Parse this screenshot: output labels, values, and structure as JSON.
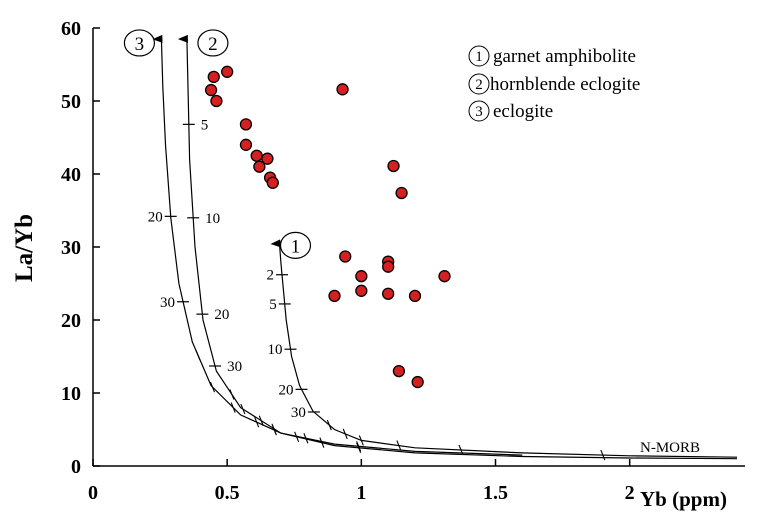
{
  "chart_data": {
    "type": "scatter",
    "xlabel": "Yb (ppm)",
    "ylabel": "La/Yb",
    "xlim": [
      0,
      2.4
    ],
    "ylim": [
      0,
      60
    ],
    "x_ticks": [
      "0",
      "0.5",
      "1",
      "1.5",
      "2"
    ],
    "y_ticks": [
      "0",
      "10",
      "20",
      "30",
      "40",
      "50",
      "60"
    ],
    "grid": false,
    "legend_position": "top-right",
    "legend": [
      {
        "number": "1",
        "label": "garnet amphibolite"
      },
      {
        "number": "2",
        "label": "hornblende eclogite"
      },
      {
        "number": "3",
        "label": "eclogite"
      }
    ],
    "annotation": "N-MORB",
    "points": {
      "color": "#d42020",
      "x": [
        0.44,
        0.45,
        0.46,
        0.5,
        0.57,
        0.57,
        0.61,
        0.62,
        0.65,
        0.66,
        0.67,
        0.93,
        1.12,
        1.15,
        0.94,
        1.1,
        1.1,
        1.0,
        1.31,
        0.9,
        1.0,
        1.1,
        1.2,
        1.14,
        1.21
      ],
      "y": [
        51.5,
        53.3,
        50.0,
        54.0,
        46.8,
        44.0,
        42.5,
        41.0,
        42.1,
        39.5,
        38.8,
        51.6,
        41.1,
        37.4,
        28.7,
        28.0,
        27.3,
        26.0,
        26.0,
        23.3,
        24.0,
        23.6,
        23.3,
        13.0,
        11.5
      ]
    },
    "series": [
      {
        "name": "1",
        "x": [
          2.4,
          2.0,
          1.6,
          1.2,
          1.0,
          0.9,
          0.82,
          0.77,
          0.74,
          0.72,
          0.71,
          0.7,
          0.695
        ],
        "y": [
          1.2,
          1.4,
          1.8,
          2.5,
          3.5,
          5.0,
          7.5,
          11.0,
          15.0,
          20.0,
          24.0,
          28.0,
          30.5
        ],
        "ticks": [
          {
            "value": "2",
            "y": 26.2
          },
          {
            "value": "5",
            "y": 22.2
          },
          {
            "value": "10",
            "y": 16.0
          },
          {
            "value": "20",
            "y": 10.5
          },
          {
            "value": "30",
            "y": 7.4
          }
        ]
      },
      {
        "name": "2",
        "x": [
          2.4,
          2.0,
          1.6,
          1.2,
          0.9,
          0.7,
          0.55,
          0.46,
          0.41,
          0.38,
          0.36,
          0.355,
          0.35
        ],
        "y": [
          1.0,
          1.1,
          1.3,
          1.8,
          2.8,
          4.5,
          8.0,
          13.0,
          20.0,
          30.0,
          42.0,
          50.0,
          58.5
        ],
        "ticks": [
          {
            "value": "5",
            "y": 46.8
          },
          {
            "value": "10",
            "y": 34.0
          },
          {
            "value": "20",
            "y": 20.8
          },
          {
            "value": "30",
            "y": 13.7
          }
        ]
      },
      {
        "name": "3",
        "x": [
          1.6,
          1.2,
          0.9,
          0.7,
          0.55,
          0.44,
          0.37,
          0.32,
          0.29,
          0.27,
          0.26,
          0.255
        ],
        "y": [
          1.5,
          2.0,
          3.0,
          4.5,
          7.0,
          11.0,
          17.0,
          25.0,
          34.0,
          44.0,
          52.0,
          58.5
        ],
        "ticks": [
          {
            "value": "20",
            "y": 34.2
          },
          {
            "value": "30",
            "y": 22.5
          }
        ]
      }
    ]
  }
}
